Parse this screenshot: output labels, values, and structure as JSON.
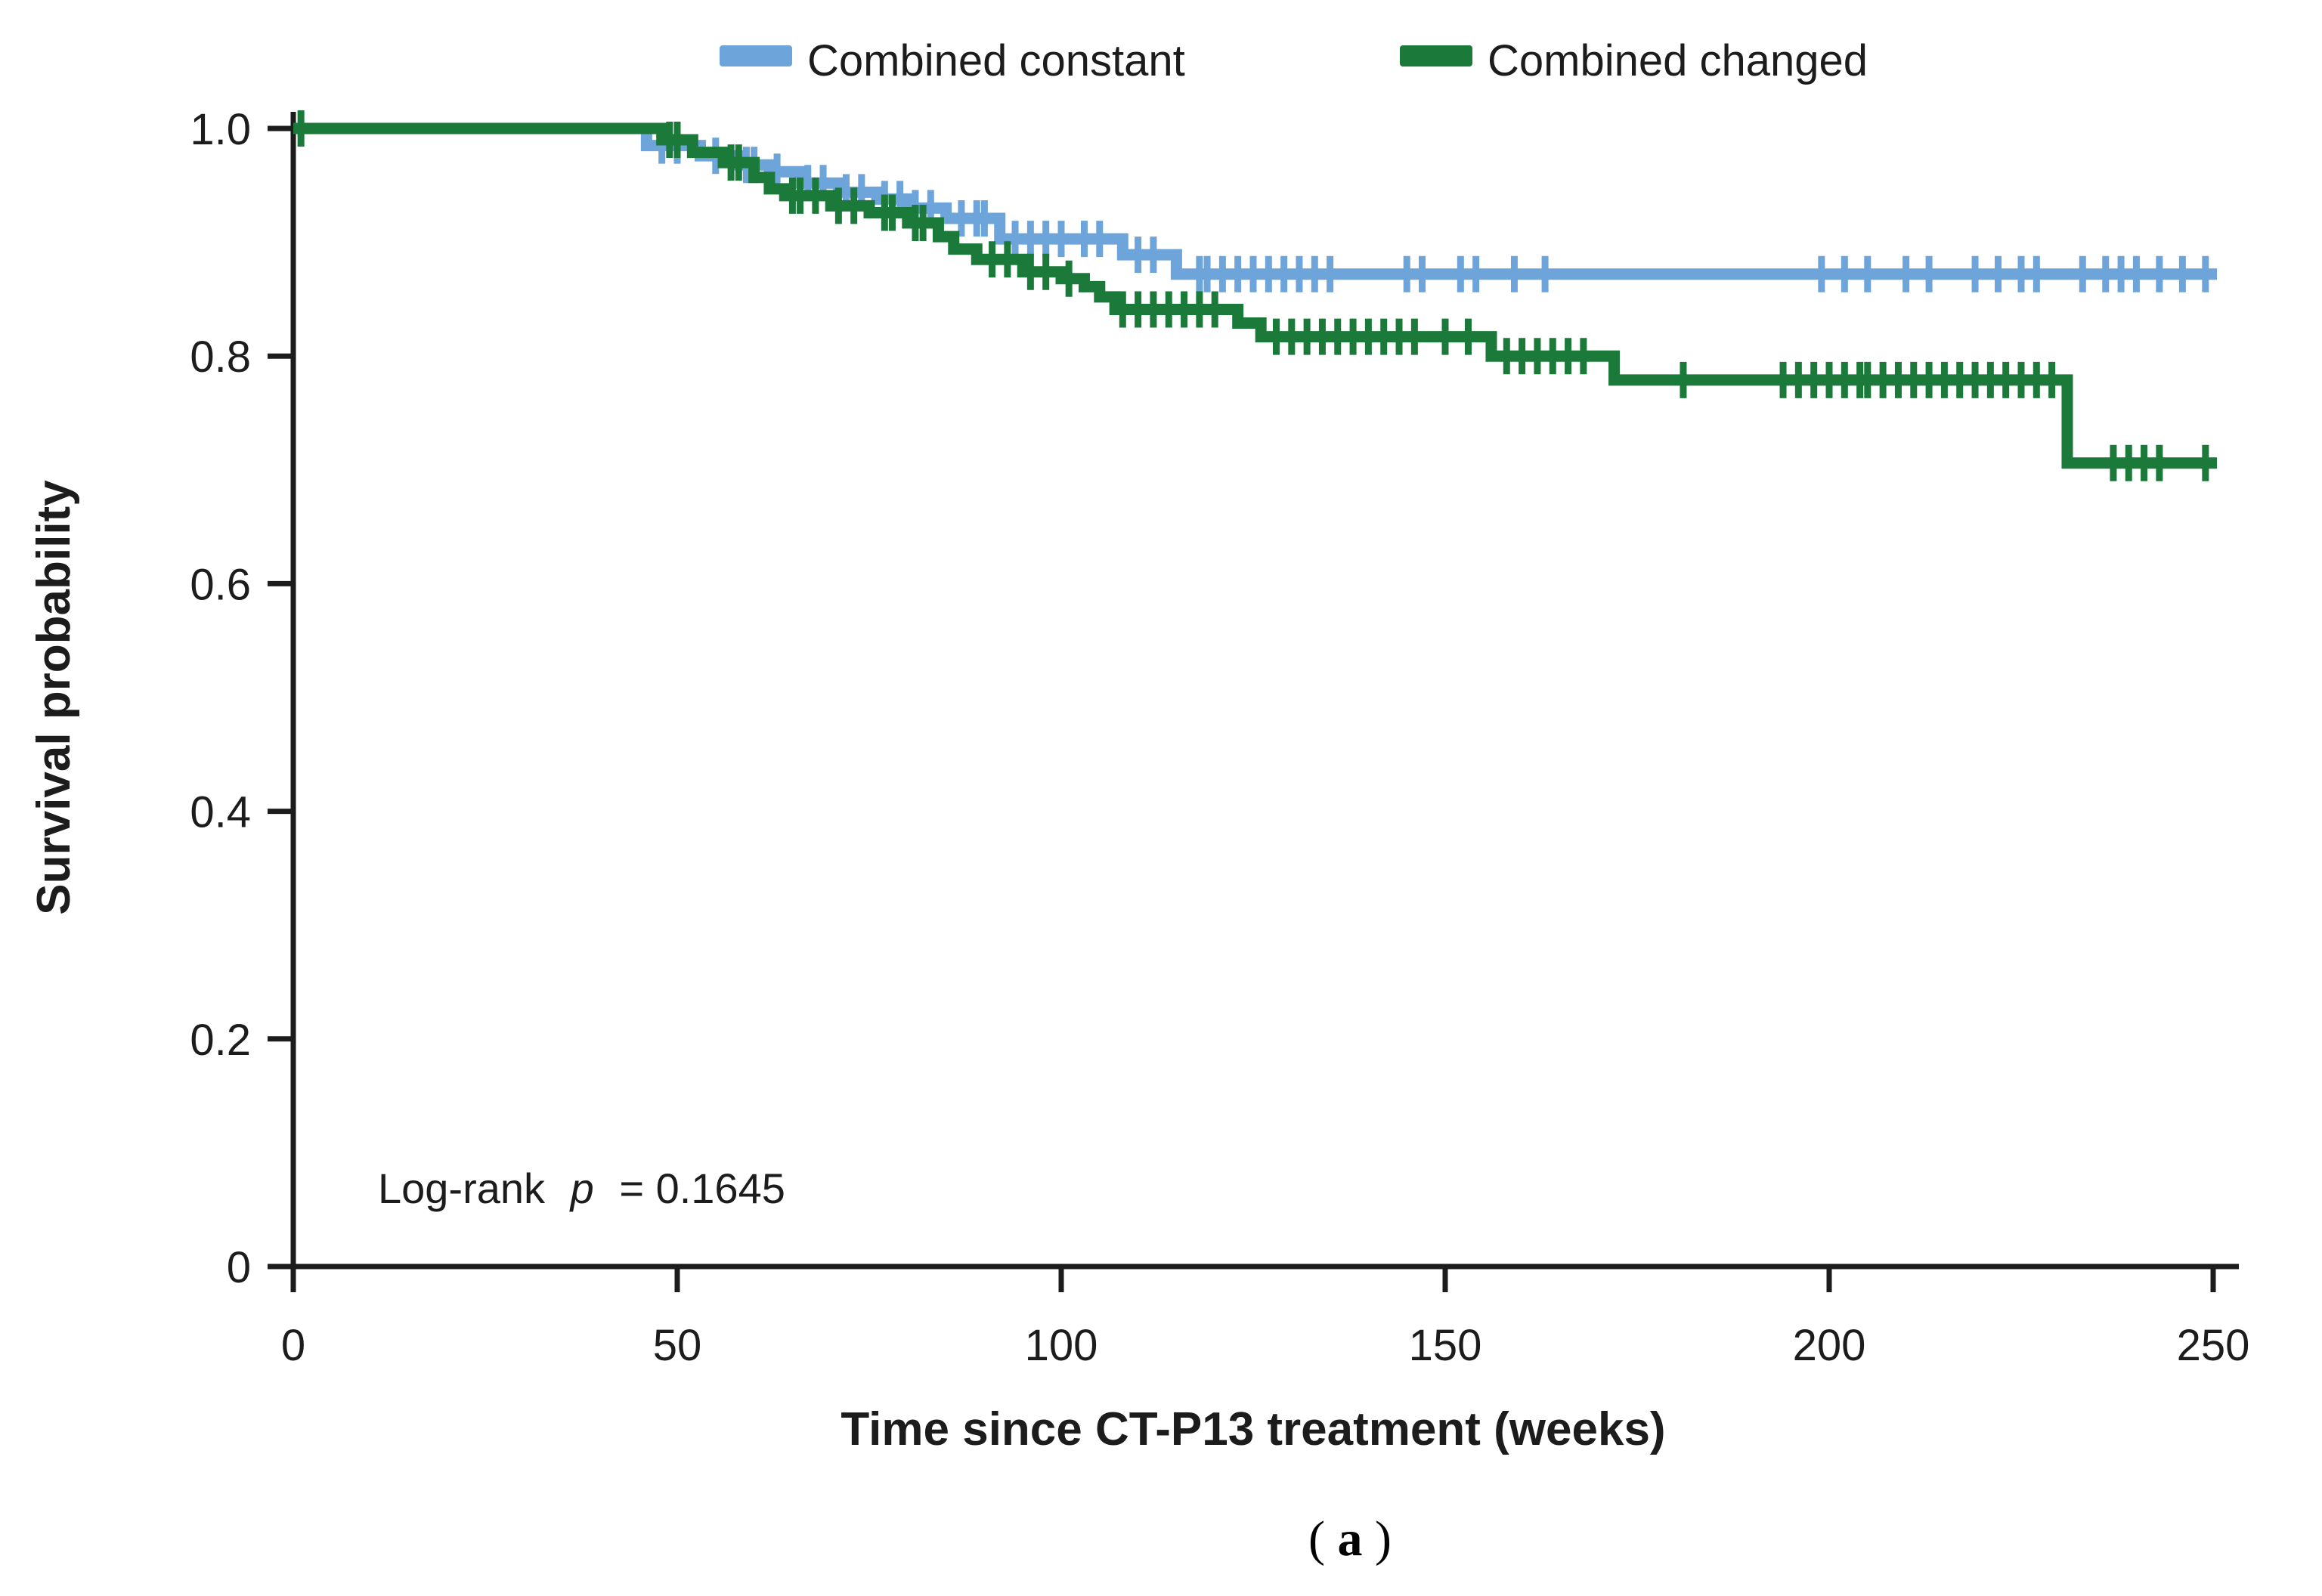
{
  "figure": {
    "caption_open": "(",
    "caption_letter": "a",
    "caption_close": ")"
  },
  "legend": [
    {
      "label": "Combined constant",
      "color": "#6DA4DA"
    },
    {
      "label": "Combined changed",
      "color": "#1B7A3A"
    }
  ],
  "annotation": {
    "prefix": "Log-rank",
    "p_symbol": "p",
    "value_text": "= 0.1645"
  },
  "chart_data": {
    "type": "line",
    "subtype": "kaplan-meier-step",
    "title": "",
    "xlabel": "Time since CT-P13 treatment (weeks)",
    "ylabel": "Survival probability",
    "xlim": [
      0,
      250
    ],
    "ylim": [
      0,
      1
    ],
    "grid": false,
    "legend_position": "top-center",
    "xticks": [
      {
        "v": 0,
        "label": "0"
      },
      {
        "v": 50,
        "label": "50"
      },
      {
        "v": 100,
        "label": "100"
      },
      {
        "v": 150,
        "label": "150"
      },
      {
        "v": 200,
        "label": "200"
      },
      {
        "v": 250,
        "label": "250"
      }
    ],
    "yticks": [
      {
        "v": 1.0,
        "label": "1.0"
      },
      {
        "v": 0.8,
        "label": "0.8"
      },
      {
        "v": 0.6,
        "label": "0.6"
      },
      {
        "v": 0.4,
        "label": "0.4"
      },
      {
        "v": 0.2,
        "label": "0.2"
      },
      {
        "v": 0,
        "label": "0"
      }
    ],
    "log_rank_p": "0.1645",
    "series": [
      {
        "name": "Combined constant",
        "color": "#6DA4DA",
        "end_week": 250.5,
        "steps": [
          [
            0,
            1.0
          ],
          [
            46,
            0.985
          ],
          [
            53,
            0.976
          ],
          [
            58,
            0.968
          ],
          [
            62,
            0.962
          ],
          [
            66,
            0.952
          ],
          [
            71,
            0.944
          ],
          [
            76,
            0.938
          ],
          [
            80,
            0.93
          ],
          [
            85,
            0.921
          ],
          [
            92,
            0.903
          ],
          [
            108,
            0.889
          ],
          [
            115,
            0.872
          ]
        ],
        "censor_marks": [
          [
            48,
            0.985
          ],
          [
            50,
            0.985
          ],
          [
            55,
            0.976
          ],
          [
            59,
            0.968
          ],
          [
            60,
            0.968
          ],
          [
            63,
            0.962
          ],
          [
            67,
            0.952
          ],
          [
            69,
            0.952
          ],
          [
            72,
            0.944
          ],
          [
            74,
            0.944
          ],
          [
            77,
            0.938
          ],
          [
            79,
            0.938
          ],
          [
            81,
            0.93
          ],
          [
            83,
            0.93
          ],
          [
            87,
            0.921
          ],
          [
            89,
            0.921
          ],
          [
            90,
            0.921
          ],
          [
            94,
            0.903
          ],
          [
            96,
            0.903
          ],
          [
            98,
            0.903
          ],
          [
            100,
            0.903
          ],
          [
            103,
            0.903
          ],
          [
            105,
            0.903
          ],
          [
            110,
            0.889
          ],
          [
            112,
            0.889
          ],
          [
            118,
            0.872
          ],
          [
            119,
            0.872
          ],
          [
            121,
            0.872
          ],
          [
            123,
            0.872
          ],
          [
            125,
            0.872
          ],
          [
            127,
            0.872
          ],
          [
            129,
            0.872
          ],
          [
            131,
            0.872
          ],
          [
            133,
            0.872
          ],
          [
            135,
            0.872
          ],
          [
            145,
            0.872
          ],
          [
            147,
            0.872
          ],
          [
            152,
            0.872
          ],
          [
            154,
            0.872
          ],
          [
            159,
            0.872
          ],
          [
            163,
            0.872
          ],
          [
            199,
            0.872
          ],
          [
            202,
            0.872
          ],
          [
            205,
            0.872
          ],
          [
            210,
            0.872
          ],
          [
            213,
            0.872
          ],
          [
            219,
            0.872
          ],
          [
            222,
            0.872
          ],
          [
            225,
            0.872
          ],
          [
            227,
            0.872
          ],
          [
            233,
            0.872
          ],
          [
            236,
            0.872
          ],
          [
            238,
            0.872
          ],
          [
            240,
            0.872
          ],
          [
            243,
            0.872
          ],
          [
            246,
            0.872
          ],
          [
            249,
            0.872
          ]
        ]
      },
      {
        "name": "Combined changed",
        "color": "#1B7A3A",
        "end_week": 250.5,
        "steps": [
          [
            0,
            1.0
          ],
          [
            48,
            0.99
          ],
          [
            52,
            0.979
          ],
          [
            56,
            0.97
          ],
          [
            60,
            0.957
          ],
          [
            62,
            0.947
          ],
          [
            64,
            0.941
          ],
          [
            70,
            0.932
          ],
          [
            75,
            0.926
          ],
          [
            80,
            0.917
          ],
          [
            84,
            0.905
          ],
          [
            86,
            0.894
          ],
          [
            89,
            0.885
          ],
          [
            95,
            0.874
          ],
          [
            100,
            0.868
          ],
          [
            103,
            0.861
          ],
          [
            105,
            0.852
          ],
          [
            107,
            0.841
          ],
          [
            123,
            0.829
          ],
          [
            126,
            0.817
          ],
          [
            156,
            0.8
          ],
          [
            172,
            0.779
          ],
          [
            231,
            0.706
          ]
        ],
        "censor_marks": [
          [
            1,
            1.0
          ],
          [
            49,
            0.99
          ],
          [
            50,
            0.99
          ],
          [
            57,
            0.97
          ],
          [
            58,
            0.97
          ],
          [
            65,
            0.941
          ],
          [
            66,
            0.941
          ],
          [
            68,
            0.941
          ],
          [
            71,
            0.932
          ],
          [
            73,
            0.932
          ],
          [
            77,
            0.926
          ],
          [
            78,
            0.926
          ],
          [
            81,
            0.917
          ],
          [
            82,
            0.917
          ],
          [
            91,
            0.885
          ],
          [
            93,
            0.885
          ],
          [
            96,
            0.874
          ],
          [
            98,
            0.874
          ],
          [
            101,
            0.868
          ],
          [
            108,
            0.841
          ],
          [
            110,
            0.841
          ],
          [
            112,
            0.841
          ],
          [
            114,
            0.841
          ],
          [
            116,
            0.841
          ],
          [
            118,
            0.841
          ],
          [
            120,
            0.841
          ],
          [
            128,
            0.817
          ],
          [
            130,
            0.817
          ],
          [
            132,
            0.817
          ],
          [
            134,
            0.817
          ],
          [
            136,
            0.817
          ],
          [
            138,
            0.817
          ],
          [
            140,
            0.817
          ],
          [
            142,
            0.817
          ],
          [
            144,
            0.817
          ],
          [
            146,
            0.817
          ],
          [
            150,
            0.817
          ],
          [
            153,
            0.817
          ],
          [
            158,
            0.8
          ],
          [
            160,
            0.8
          ],
          [
            162,
            0.8
          ],
          [
            164,
            0.8
          ],
          [
            166,
            0.8
          ],
          [
            168,
            0.8
          ],
          [
            181,
            0.779
          ],
          [
            194,
            0.779
          ],
          [
            196,
            0.779
          ],
          [
            198,
            0.779
          ],
          [
            200,
            0.779
          ],
          [
            202,
            0.779
          ],
          [
            204,
            0.779
          ],
          [
            205,
            0.779
          ],
          [
            207,
            0.779
          ],
          [
            209,
            0.779
          ],
          [
            211,
            0.779
          ],
          [
            213,
            0.779
          ],
          [
            215,
            0.779
          ],
          [
            217,
            0.779
          ],
          [
            219,
            0.779
          ],
          [
            221,
            0.779
          ],
          [
            223,
            0.779
          ],
          [
            225,
            0.779
          ],
          [
            227,
            0.779
          ],
          [
            229,
            0.779
          ],
          [
            237,
            0.706
          ],
          [
            239,
            0.706
          ],
          [
            241,
            0.706
          ],
          [
            243,
            0.706
          ],
          [
            249,
            0.706
          ]
        ]
      }
    ]
  }
}
